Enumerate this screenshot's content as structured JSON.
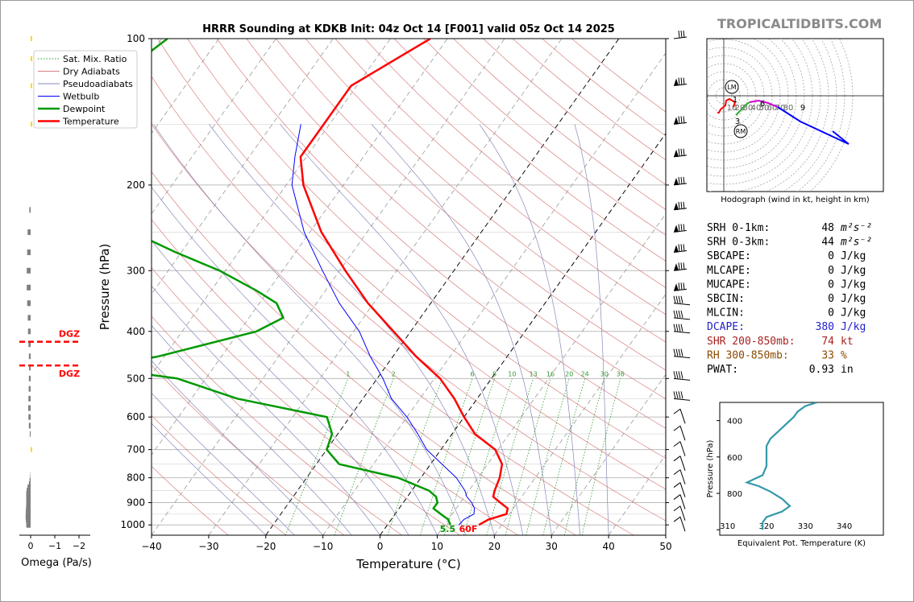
{
  "watermark": "TROPICALTIDBITS.COM",
  "colors": {
    "temperature": "#ff0000",
    "dewpoint": "#009900",
    "wetbulb": "#0000ff",
    "dry_adiabat": "#d98080",
    "pseudoadiabat": "#8888bb",
    "mixing": "#339933",
    "omega_bar": "#808080",
    "dgz": "#ff0000",
    "theta_e": "#3399aa",
    "hodo_0_3": "#ff0000",
    "hodo_3_6": "#33aa33",
    "hodo_6_9": "#cc00cc",
    "hodo_9_12": "#0000ff"
  },
  "chart_data": [
    {
      "id": "skewt",
      "type": "line",
      "title": "HRRR Sounding at KDKB Init: 04z Oct 14 [F001] valid 05z Oct 14 2025",
      "xlabel": "Temperature (°C)",
      "ylabel": "Pressure (hPa)",
      "xlim": [
        -40,
        50
      ],
      "ylim": [
        1050,
        100
      ],
      "x_ticks": [
        "−40",
        "−30",
        "−20",
        "−10",
        "0",
        "10",
        "20",
        "30",
        "40",
        "50"
      ],
      "y_ticks": [
        "100",
        "200",
        "300",
        "400",
        "500",
        "600",
        "700",
        "800",
        "900",
        "1000"
      ],
      "legend": [
        "Sat. Mix. Ratio",
        "Dry Adiabats",
        "Pseudoadiabats",
        "Wetbulb",
        "Dewpoint",
        "Temperature"
      ],
      "legend_position": "top-left",
      "mixing_ratio_labels": [
        "1",
        "2",
        "6",
        "8",
        "10",
        "13",
        "16",
        "20",
        "24",
        "30",
        "36"
      ],
      "surface_labels": {
        "dewpoint": "5.5",
        "temperature": "60F"
      },
      "series": [
        {
          "name": "Temperature",
          "points": [
            [
              1000,
              16
            ],
            [
              975,
              17
            ],
            [
              950,
              19.5
            ],
            [
              925,
              19
            ],
            [
              900,
              17
            ],
            [
              875,
              15
            ],
            [
              850,
              14.5
            ],
            [
              800,
              13.8
            ],
            [
              750,
              12.5
            ],
            [
              700,
              9.5
            ],
            [
              650,
              4
            ],
            [
              600,
              0
            ],
            [
              550,
              -4
            ],
            [
              500,
              -9
            ],
            [
              450,
              -16
            ],
            [
              400,
              -23
            ],
            [
              350,
              -31
            ],
            [
              300,
              -39
            ],
            [
              250,
              -48
            ],
            [
              200,
              -57
            ],
            [
              175,
              -61
            ],
            [
              150,
              -61
            ],
            [
              125,
              -61
            ],
            [
              100,
              -53
            ]
          ]
        },
        {
          "name": "Dewpoint",
          "points": [
            [
              1000,
              11
            ],
            [
              975,
              10
            ],
            [
              950,
              8
            ],
            [
              925,
              6
            ],
            [
              900,
              6
            ],
            [
              875,
              5
            ],
            [
              850,
              3
            ],
            [
              800,
              -4
            ],
            [
              750,
              -16
            ],
            [
              700,
              -20
            ],
            [
              650,
              -21
            ],
            [
              600,
              -24
            ],
            [
              550,
              -42
            ],
            [
              500,
              -55
            ],
            [
              475,
              -70
            ],
            [
              450,
              -61
            ],
            [
              400,
              -47
            ],
            [
              375,
              -44
            ],
            [
              350,
              -47
            ],
            [
              330,
              -52
            ],
            [
              300,
              -61
            ],
            [
              275,
              -71
            ],
            [
              250,
              -81
            ],
            [
              225,
              -87
            ],
            [
              200,
              -90
            ],
            [
              175,
              -95
            ],
            [
              150,
              -101
            ],
            [
              125,
              -104
            ],
            [
              100,
              -99
            ]
          ]
        },
        {
          "name": "Wetbulb",
          "points": [
            [
              1000,
              12.5
            ],
            [
              975,
              12.7
            ],
            [
              950,
              13.8
            ],
            [
              925,
              13.2
            ],
            [
              900,
              12
            ],
            [
              875,
              10.4
            ],
            [
              850,
              9.3
            ],
            [
              800,
              6.2
            ],
            [
              750,
              2
            ],
            [
              700,
              -2.5
            ],
            [
              650,
              -6
            ],
            [
              600,
              -10
            ],
            [
              550,
              -15
            ],
            [
              500,
              -19
            ],
            [
              450,
              -24
            ],
            [
              400,
              -29
            ],
            [
              350,
              -36
            ],
            [
              300,
              -43
            ],
            [
              250,
              -51
            ],
            [
              200,
              -59
            ],
            [
              175,
              -62
            ],
            [
              150,
              -65
            ]
          ]
        }
      ]
    },
    {
      "id": "omega",
      "type": "bar",
      "xlabel": "Omega (Pa/s)",
      "x_ticks": [
        "0",
        "−1",
        "−2"
      ],
      "xlim": [
        0,
        -2
      ],
      "dgz_label": "DGZ",
      "dgz_levels": [
        420,
        470
      ],
      "bar_color": "#808080",
      "bars": [
        [
          1000,
          -0.2
        ],
        [
          987,
          -0.2
        ],
        [
          975,
          -0.22
        ],
        [
          962,
          -0.23
        ],
        [
          950,
          -0.22
        ],
        [
          937,
          -0.22
        ],
        [
          925,
          -0.21
        ],
        [
          912,
          -0.2
        ],
        [
          900,
          -0.2
        ],
        [
          887,
          -0.2
        ],
        [
          875,
          -0.2
        ],
        [
          862,
          -0.2
        ],
        [
          850,
          -0.18
        ],
        [
          837,
          -0.14
        ],
        [
          825,
          -0.08
        ],
        [
          812,
          -0.05
        ],
        [
          800,
          -0.02
        ],
        [
          787,
          -0.01
        ],
        [
          650,
          -0.04
        ],
        [
          625,
          -0.08
        ],
        [
          600,
          -0.1
        ],
        [
          575,
          -0.11
        ],
        [
          550,
          -0.1
        ],
        [
          525,
          -0.09
        ],
        [
          500,
          -0.08
        ],
        [
          475,
          -0.07
        ],
        [
          450,
          -0.08
        ],
        [
          425,
          -0.1
        ],
        [
          400,
          -0.12
        ],
        [
          375,
          -0.13
        ],
        [
          350,
          -0.16
        ],
        [
          325,
          -0.18
        ],
        [
          300,
          -0.18
        ],
        [
          275,
          -0.16
        ],
        [
          250,
          -0.14
        ],
        [
          225,
          -0.06
        ]
      ],
      "yellow_bars": [
        [
          700,
          0.02
        ],
        [
          150,
          0.02
        ],
        [
          125,
          0.03
        ],
        [
          110,
          0.04
        ],
        [
          100,
          0.02
        ]
      ]
    },
    {
      "id": "hodograph",
      "type": "line",
      "title": "Hodograph (wind in kt, height in km)",
      "ring_labels": [
        "10",
        "20",
        "30",
        "40",
        "50",
        "60",
        "70",
        "80"
      ],
      "markers": [
        "LM",
        "RM"
      ],
      "height_labels": [
        "1",
        "3",
        "6",
        "9"
      ],
      "series": [
        {
          "name": "0-3km",
          "color": "#ff0000",
          "points": [
            [
              -8,
              -21
            ],
            [
              -6,
              -21
            ],
            [
              -4,
              -17
            ],
            [
              2,
              -12
            ],
            [
              3,
              -6
            ],
            [
              7,
              -4
            ],
            [
              14,
              -8
            ],
            [
              12,
              -14
            ]
          ]
        },
        {
          "name": "3-6km",
          "color": "#33aa33",
          "points": [
            [
              15,
              -24
            ],
            [
              21,
              -18
            ],
            [
              26,
              -12
            ],
            [
              32,
              -8
            ]
          ]
        },
        {
          "name": "6-9km",
          "color": "#cc00cc",
          "points": [
            [
              32,
              -8
            ],
            [
              43,
              -6
            ],
            [
              55,
              -9
            ],
            [
              67,
              -14
            ]
          ]
        },
        {
          "name": "9-12km",
          "color": "#0000ff",
          "points": [
            [
              67,
              -14
            ],
            [
              95,
              -32
            ],
            [
              140,
              -53
            ],
            [
              155,
              -60
            ],
            [
              135,
              -44
            ]
          ]
        }
      ]
    },
    {
      "id": "thetae",
      "type": "line",
      "xlabel": "Equivalent Pot. Temperature (K)",
      "ylabel": "Pressure (hPa)",
      "x_ticks": [
        "310",
        "320",
        "330",
        "340"
      ],
      "xlim": [
        308,
        350
      ],
      "y_ticks": [
        "400",
        "600",
        "800",
        "1000"
      ],
      "ylim": [
        300,
        1030
      ],
      "series": [
        {
          "name": "Theta-e",
          "points": [
            [
              300,
              333
            ],
            [
              320,
              330
            ],
            [
              350,
              328
            ],
            [
              380,
              327
            ],
            [
              420,
              325
            ],
            [
              460,
              323
            ],
            [
              500,
              321
            ],
            [
              540,
              320
            ],
            [
              600,
              320
            ],
            [
              650,
              320
            ],
            [
              700,
              319
            ],
            [
              720,
              317
            ],
            [
              740,
              315
            ],
            [
              760,
              318
            ],
            [
              790,
              321
            ],
            [
              830,
              324
            ],
            [
              870,
              326
            ],
            [
              900,
              324
            ],
            [
              930,
              320
            ],
            [
              960,
              319
            ],
            [
              990,
              319
            ],
            [
              1000,
              319
            ]
          ]
        }
      ]
    }
  ],
  "indices": [
    {
      "label": "SRH 0-1km:",
      "value": "48",
      "unit": "m²s⁻²",
      "color": "#000000"
    },
    {
      "label": "SRH 0-3km:",
      "value": "44",
      "unit": "m²s⁻²",
      "color": "#000000"
    },
    {
      "label": "SBCAPE:",
      "value": "0",
      "unit": "J/kg",
      "color": "#000000"
    },
    {
      "label": "MLCAPE:",
      "value": "0",
      "unit": "J/kg",
      "color": "#000000"
    },
    {
      "label": "MUCAPE:",
      "value": "0",
      "unit": "J/kg",
      "color": "#000000"
    },
    {
      "label": "SBCIN:",
      "value": "0",
      "unit": "J/kg",
      "color": "#000000"
    },
    {
      "label": "MLCIN:",
      "value": "0",
      "unit": "J/kg",
      "color": "#000000"
    },
    {
      "label": "DCAPE:",
      "value": "380",
      "unit": "J/kg",
      "color": "#2222cc"
    },
    {
      "label": "SHR 200-850mb:",
      "value": "74",
      "unit": "kt",
      "color": "#aa2222"
    },
    {
      "label": "RH 300-850mb:",
      "value": "33",
      "unit": "%",
      "color": "#8b4a00"
    },
    {
      "label": "PWAT:",
      "value": "0.93",
      "unit": "in",
      "color": "#000000"
    }
  ]
}
